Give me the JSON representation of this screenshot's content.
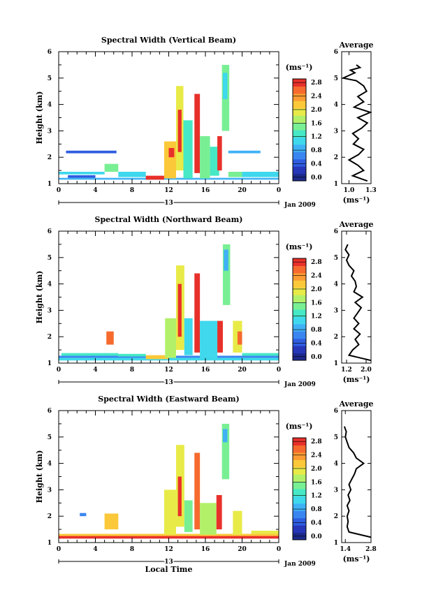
{
  "chart_data": [
    {
      "type": "heatmap",
      "title": "Spectral Width (Vertical Beam)",
      "ylabel": "Height (km)",
      "xlabel": "",
      "x_ticks": [
        "0",
        "4",
        "8",
        "12",
        "16",
        "20",
        "0"
      ],
      "xlim": [
        0,
        24
      ],
      "y_ticks": [
        "1",
        "2",
        "3",
        "4",
        "5",
        "6"
      ],
      "ylim": [
        1,
        6
      ],
      "date_bar_label": "13",
      "date_label": "Jan 2009",
      "colorbar": {
        "unit": "(ms⁻¹)",
        "min": 0.0,
        "max": 2.8,
        "tick_labels": [
          "0.0",
          "0.4",
          "0.8",
          "1.2",
          "1.6",
          "2.0",
          "2.4",
          "2.8"
        ]
      },
      "cells": [
        {
          "t0": 0.0,
          "t1": 24.0,
          "h0": 1.15,
          "h1": 1.22,
          "v": 0.8
        },
        {
          "t0": 0.0,
          "t1": 5.0,
          "h0": 1.35,
          "h1": 1.45,
          "v": 1.0
        },
        {
          "t0": 1.0,
          "t1": 4.0,
          "h0": 1.22,
          "h1": 1.32,
          "v": 0.5
        },
        {
          "t0": 0.8,
          "t1": 6.3,
          "h0": 2.15,
          "h1": 2.25,
          "v": 0.5
        },
        {
          "t0": 5.0,
          "t1": 6.5,
          "h0": 1.45,
          "h1": 1.75,
          "v": 1.5
        },
        {
          "t0": 6.5,
          "t1": 9.5,
          "h0": 1.25,
          "h1": 1.45,
          "v": 1.1
        },
        {
          "t0": 9.5,
          "t1": 11.5,
          "h0": 1.15,
          "h1": 1.3,
          "v": 2.6
        },
        {
          "t0": 11.5,
          "t1": 12.8,
          "h0": 1.2,
          "h1": 2.6,
          "v": 2.0
        },
        {
          "t0": 12.0,
          "t1": 12.6,
          "h0": 2.0,
          "h1": 2.35,
          "v": 2.8
        },
        {
          "t0": 12.8,
          "t1": 13.6,
          "h0": 1.5,
          "h1": 4.7,
          "v": 1.8
        },
        {
          "t0": 13.0,
          "t1": 13.4,
          "h0": 2.2,
          "h1": 3.8,
          "v": 2.6
        },
        {
          "t0": 13.6,
          "t1": 14.6,
          "h0": 1.2,
          "h1": 3.4,
          "v": 1.3
        },
        {
          "t0": 14.8,
          "t1": 15.4,
          "h0": 1.4,
          "h1": 4.4,
          "v": 2.6
        },
        {
          "t0": 15.4,
          "t1": 16.5,
          "h0": 1.2,
          "h1": 2.8,
          "v": 1.5
        },
        {
          "t0": 16.5,
          "t1": 17.5,
          "h0": 1.3,
          "h1": 2.4,
          "v": 1.2
        },
        {
          "t0": 17.3,
          "t1": 17.8,
          "h0": 1.5,
          "h1": 2.8,
          "v": 2.8
        },
        {
          "t0": 17.8,
          "t1": 18.6,
          "h0": 3.0,
          "h1": 5.5,
          "v": 1.5
        },
        {
          "t0": 17.9,
          "t1": 18.4,
          "h0": 4.2,
          "h1": 5.2,
          "v": 1.0
        },
        {
          "t0": 18.5,
          "t1": 20.0,
          "h0": 1.25,
          "h1": 1.45,
          "v": 1.4
        },
        {
          "t0": 18.5,
          "t1": 22.0,
          "h0": 2.15,
          "h1": 2.25,
          "v": 0.9
        },
        {
          "t0": 20.0,
          "t1": 24.0,
          "h0": 1.25,
          "h1": 1.45,
          "v": 1.0
        }
      ],
      "profile": {
        "xlabel": "(ms⁻¹)",
        "title": "Average",
        "xlim": [
          0.9,
          1.3
        ],
        "x_ticks": [
          "1.0",
          "1.3"
        ],
        "y": [
          1.1,
          1.3,
          1.5,
          1.7,
          1.9,
          2.1,
          2.3,
          2.5,
          2.7,
          2.9,
          3.1,
          3.3,
          3.5,
          3.7,
          3.9,
          4.1,
          4.3,
          4.5,
          4.7,
          4.9,
          5.0,
          5.1,
          5.2,
          5.3,
          5.4,
          5.5
        ],
        "x": [
          1.25,
          1.05,
          1.2,
          1.12,
          1.0,
          1.13,
          1.2,
          1.06,
          1.13,
          1.05,
          1.17,
          1.25,
          1.12,
          1.29,
          1.07,
          1.2,
          1.12,
          1.24,
          1.2,
          1.1,
          0.92,
          1.0,
          1.08,
          1.02,
          1.15,
          1.1
        ]
      }
    },
    {
      "type": "heatmap",
      "title": "Spectral Width (Northward Beam)",
      "ylabel": "Height (km)",
      "xlabel": "",
      "x_ticks": [
        "0",
        "4",
        "8",
        "12",
        "16",
        "20",
        "0"
      ],
      "xlim": [
        0,
        24
      ],
      "y_ticks": [
        "1",
        "2",
        "3",
        "4",
        "5",
        "6"
      ],
      "ylim": [
        1,
        6
      ],
      "date_bar_label": "13",
      "date_label": "Jan 2009",
      "colorbar": {
        "unit": "(ms⁻¹)",
        "min": 0.0,
        "max": 2.8,
        "tick_labels": [
          "0.0",
          "0.4",
          "0.8",
          "1.2",
          "1.6",
          "2.0",
          "2.4",
          "2.8"
        ]
      },
      "cells": [
        {
          "t0": 0.0,
          "t1": 24.0,
          "h0": 1.1,
          "h1": 1.2,
          "v": 1.1
        },
        {
          "t0": 0.0,
          "t1": 24.0,
          "h0": 1.2,
          "h1": 1.28,
          "v": 0.7
        },
        {
          "t0": 0.3,
          "t1": 6.5,
          "h0": 1.28,
          "h1": 1.38,
          "v": 1.3
        },
        {
          "t0": 5.2,
          "t1": 6.0,
          "h0": 1.7,
          "h1": 2.2,
          "v": 2.4
        },
        {
          "t0": 6.5,
          "t1": 9.5,
          "h0": 1.25,
          "h1": 1.35,
          "v": 1.2
        },
        {
          "t0": 9.5,
          "t1": 12.0,
          "h0": 1.15,
          "h1": 1.3,
          "v": 2.0
        },
        {
          "t0": 11.6,
          "t1": 12.8,
          "h0": 1.2,
          "h1": 2.7,
          "v": 1.6
        },
        {
          "t0": 12.8,
          "t1": 13.7,
          "h0": 1.5,
          "h1": 4.7,
          "v": 1.8
        },
        {
          "t0": 13.0,
          "t1": 13.4,
          "h0": 2.0,
          "h1": 4.0,
          "v": 2.6
        },
        {
          "t0": 13.7,
          "t1": 14.6,
          "h0": 1.3,
          "h1": 2.7,
          "v": 1.1
        },
        {
          "t0": 14.8,
          "t1": 15.4,
          "h0": 1.4,
          "h1": 4.4,
          "v": 2.6
        },
        {
          "t0": 15.4,
          "t1": 17.3,
          "h0": 1.2,
          "h1": 2.6,
          "v": 1.0
        },
        {
          "t0": 17.3,
          "t1": 17.9,
          "h0": 1.4,
          "h1": 2.6,
          "v": 2.6
        },
        {
          "t0": 17.9,
          "t1": 18.7,
          "h0": 3.2,
          "h1": 5.5,
          "v": 1.5
        },
        {
          "t0": 18.0,
          "t1": 18.5,
          "h0": 4.5,
          "h1": 5.3,
          "v": 0.9
        },
        {
          "t0": 19.0,
          "t1": 20.0,
          "h0": 1.4,
          "h1": 2.6,
          "v": 1.8
        },
        {
          "t0": 19.5,
          "t1": 20.0,
          "h0": 1.7,
          "h1": 2.2,
          "v": 2.5
        },
        {
          "t0": 20.0,
          "t1": 24.0,
          "h0": 1.28,
          "h1": 1.38,
          "v": 1.2
        }
      ],
      "profile": {
        "xlabel": "(ms⁻¹)",
        "title": "Average",
        "xlim": [
          1.0,
          2.2
        ],
        "x_ticks": [
          "1.2",
          "2.0"
        ],
        "y": [
          1.1,
          1.3,
          1.5,
          1.7,
          1.9,
          2.1,
          2.3,
          2.5,
          2.7,
          2.9,
          3.1,
          3.3,
          3.5,
          3.7,
          3.9,
          4.1,
          4.3,
          4.5,
          4.7,
          4.9,
          5.1,
          5.3,
          5.5
        ],
        "x": [
          2.2,
          1.3,
          1.45,
          1.7,
          1.55,
          1.75,
          1.5,
          1.7,
          1.5,
          1.65,
          1.8,
          1.55,
          1.85,
          1.5,
          1.6,
          1.55,
          1.4,
          1.5,
          1.3,
          1.2,
          1.3,
          1.15,
          1.25
        ]
      }
    },
    {
      "type": "heatmap",
      "title": "Spectral Width (Eastward Beam)",
      "ylabel": "Height (km)",
      "xlabel": "Local Time",
      "x_ticks": [
        "0",
        "4",
        "8",
        "12",
        "16",
        "20",
        "0"
      ],
      "xlim": [
        0,
        24
      ],
      "y_ticks": [
        "1",
        "2",
        "3",
        "4",
        "5",
        "6"
      ],
      "ylim": [
        1,
        6
      ],
      "date_bar_label": "13",
      "date_label": "Jan 2009",
      "colorbar": {
        "unit": "(ms⁻¹)",
        "min": 0.0,
        "max": 2.8,
        "tick_labels": [
          "0.0",
          "0.4",
          "0.8",
          "1.2",
          "1.6",
          "2.0",
          "2.4",
          "2.8"
        ]
      },
      "cells": [
        {
          "t0": 0.0,
          "t1": 24.0,
          "h0": 1.15,
          "h1": 1.25,
          "v": 2.6
        },
        {
          "t0": 0.0,
          "t1": 24.0,
          "h0": 1.25,
          "h1": 1.33,
          "v": 2.0
        },
        {
          "t0": 2.3,
          "t1": 3.0,
          "h0": 2.0,
          "h1": 2.12,
          "v": 0.7
        },
        {
          "t0": 5.0,
          "t1": 6.5,
          "h0": 1.5,
          "h1": 2.1,
          "v": 2.0
        },
        {
          "t0": 11.5,
          "t1": 12.8,
          "h0": 1.3,
          "h1": 3.0,
          "v": 1.9
        },
        {
          "t0": 12.8,
          "t1": 13.7,
          "h0": 1.6,
          "h1": 4.7,
          "v": 1.8
        },
        {
          "t0": 13.0,
          "t1": 13.4,
          "h0": 2.0,
          "h1": 3.5,
          "v": 2.8
        },
        {
          "t0": 13.7,
          "t1": 14.6,
          "h0": 1.4,
          "h1": 2.6,
          "v": 1.5
        },
        {
          "t0": 14.8,
          "t1": 15.4,
          "h0": 1.5,
          "h1": 4.4,
          "v": 2.4
        },
        {
          "t0": 15.4,
          "t1": 17.2,
          "h0": 1.3,
          "h1": 2.5,
          "v": 1.6
        },
        {
          "t0": 17.2,
          "t1": 17.8,
          "h0": 1.5,
          "h1": 2.8,
          "v": 2.6
        },
        {
          "t0": 17.8,
          "t1": 18.6,
          "h0": 3.4,
          "h1": 5.5,
          "v": 1.4
        },
        {
          "t0": 17.9,
          "t1": 18.4,
          "h0": 4.8,
          "h1": 5.3,
          "v": 0.9
        },
        {
          "t0": 19.0,
          "t1": 20.0,
          "h0": 1.3,
          "h1": 2.2,
          "v": 1.9
        },
        {
          "t0": 21.0,
          "t1": 24.0,
          "h0": 1.33,
          "h1": 1.45,
          "v": 1.8
        }
      ],
      "profile": {
        "xlabel": "(ms⁻¹)",
        "title": "Average",
        "xlim": [
          1.2,
          2.8
        ],
        "x_ticks": [
          "1.4",
          "2.8"
        ],
        "y": [
          1.2,
          1.4,
          1.6,
          1.8,
          2.0,
          2.2,
          2.4,
          2.6,
          2.8,
          3.0,
          3.2,
          3.4,
          3.6,
          3.8,
          4.0,
          4.2,
          4.4,
          4.6,
          4.8,
          5.0,
          5.2,
          5.4
        ],
        "x": [
          2.8,
          1.6,
          1.5,
          1.55,
          1.5,
          1.6,
          1.5,
          1.65,
          1.55,
          1.7,
          1.6,
          1.75,
          1.9,
          2.0,
          2.4,
          2.0,
          1.85,
          1.6,
          1.5,
          1.4,
          1.45,
          1.35
        ]
      }
    }
  ]
}
